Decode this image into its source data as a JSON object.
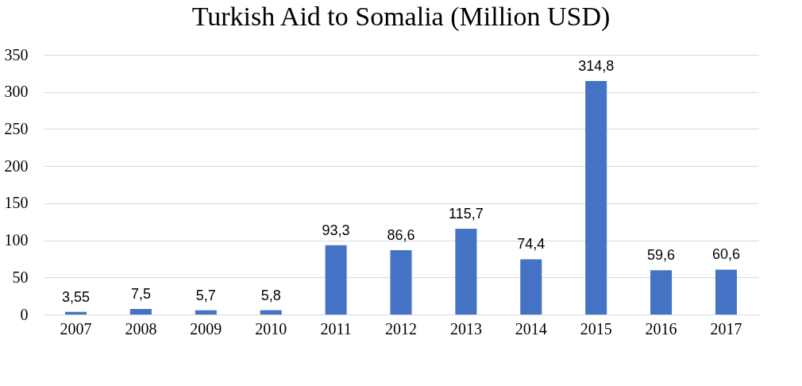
{
  "chart_data": {
    "type": "bar",
    "title": "Turkish  Aid to Somalia  (Million USD)",
    "categories": [
      "2007",
      "2008",
      "2009",
      "2010",
      "2011",
      "2012",
      "2013",
      "2014",
      "2015",
      "2016",
      "2017"
    ],
    "values": [
      3.55,
      7.5,
      5.7,
      5.8,
      93.3,
      86.6,
      115.7,
      74.4,
      314.8,
      59.6,
      60.6
    ],
    "value_labels": [
      "3,55",
      "7,5",
      "5,7",
      "5,8",
      "93,3",
      "86,6",
      "115,7",
      "74,4",
      "314,8",
      "59,6",
      "60,6"
    ],
    "color": "#4472c4",
    "ylim": [
      0,
      350
    ],
    "yticks": [
      0,
      50,
      100,
      150,
      200,
      250,
      300,
      350
    ],
    "grid": "y"
  }
}
